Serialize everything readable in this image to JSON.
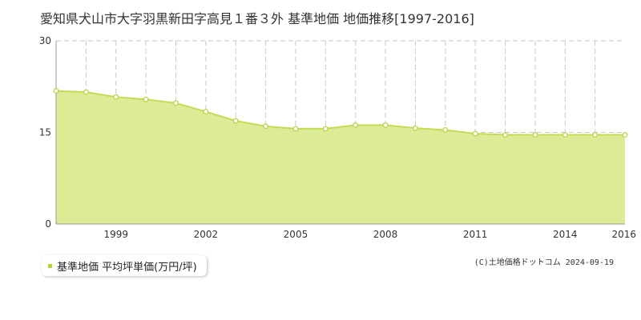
{
  "title": "愛知県犬山市大字羽黒新田字高見１番３外 基準地価 地価推移[1997-2016]",
  "legend": {
    "label": "基準地価 平均坪単価(万円/坪)",
    "marker_color": "#b5d335"
  },
  "copyright": "(C)土地価格ドットコム 2024-09-19",
  "colors": {
    "fill": "#dceb95",
    "line": "#c2dc55",
    "point_fill": "#ffffff",
    "point_stroke": "#b9d34a",
    "grid": "#c8c8c8",
    "axis": "#999999"
  },
  "chart_data": {
    "type": "area",
    "x": [
      1997,
      1998,
      1999,
      2000,
      2001,
      2002,
      2003,
      2004,
      2005,
      2006,
      2007,
      2008,
      2009,
      2010,
      2011,
      2012,
      2013,
      2014,
      2015,
      2016
    ],
    "series": [
      {
        "values": [
          21.8,
          21.6,
          20.8,
          20.4,
          19.8,
          18.4,
          16.9,
          16.0,
          15.6,
          15.6,
          16.2,
          16.2,
          15.7,
          15.4,
          14.8,
          14.6,
          14.6,
          14.6,
          14.6,
          14.6
        ]
      }
    ],
    "xlim": [
      1997,
      2016
    ],
    "ylim": [
      0,
      30
    ],
    "xticks": [
      1999,
      2002,
      2005,
      2008,
      2011,
      2014,
      2016
    ],
    "yticks": [
      0,
      15,
      30
    ],
    "grid": true,
    "legend_position": "bottom-left"
  }
}
